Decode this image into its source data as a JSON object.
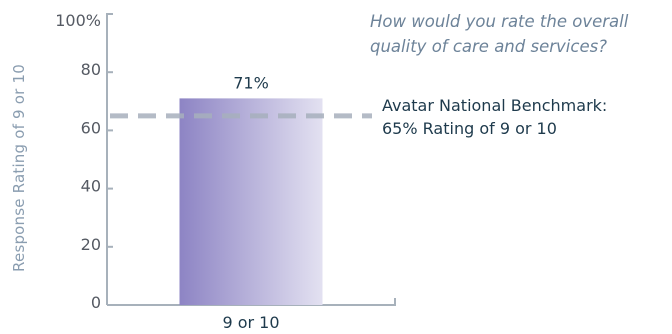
{
  "chart_data": {
    "type": "bar",
    "categories": [
      "9 or 10"
    ],
    "values": [
      71
    ],
    "data_labels": [
      "71%"
    ],
    "ylabel": "Response  Rating  of 9 or 10",
    "ylim": [
      0,
      100
    ],
    "yticks": [
      0,
      20,
      40,
      60,
      80,
      100
    ],
    "ytick_labels": [
      "0",
      "20",
      "40",
      "60",
      "80",
      "100%"
    ],
    "grid": false,
    "annotation_question": {
      "line1": "How would you rate the overall",
      "line2": "quality of care and services?"
    },
    "benchmark": {
      "value": 65,
      "line1": "Avatar National Benchmark:",
      "line2": "65% Rating of 9 or 10",
      "style": "dashed"
    },
    "colors": {
      "bar_gradient_start": "#8d84c4",
      "bar_gradient_end": "#e3e1f1",
      "benchmark_line": "#a7b0bd",
      "axis": "#a7b1bb"
    }
  }
}
